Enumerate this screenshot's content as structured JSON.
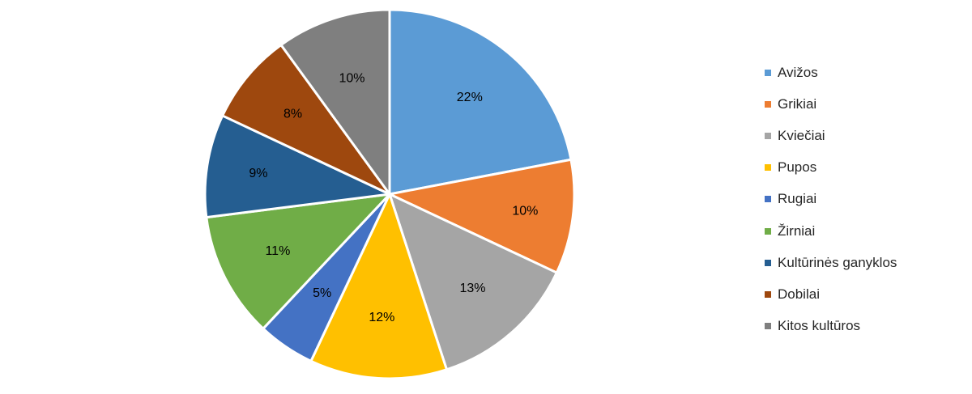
{
  "chart_data": {
    "type": "pie",
    "title": "",
    "categories": [
      "Avižos",
      "Grikiai",
      "Kviečiai",
      "Pupos",
      "Rugiai",
      "Žirniai",
      "Kultūrinės ganyklos",
      "Dobilai",
      "Kitos kultūros"
    ],
    "values": [
      22,
      10,
      13,
      12,
      5,
      11,
      9,
      8,
      10
    ],
    "labels": [
      "22%",
      "10%",
      "13%",
      "12%",
      "5%",
      "11%",
      "9%",
      "8%",
      "10%"
    ],
    "colors": [
      "#5B9BD5",
      "#ED7D31",
      "#A5A5A5",
      "#FFC000",
      "#4472C4",
      "#70AD47",
      "#255E91",
      "#9E480E",
      "#7F7F7F"
    ],
    "start_angle_deg": 0,
    "direction": "clockwise",
    "legend_position": "right"
  }
}
